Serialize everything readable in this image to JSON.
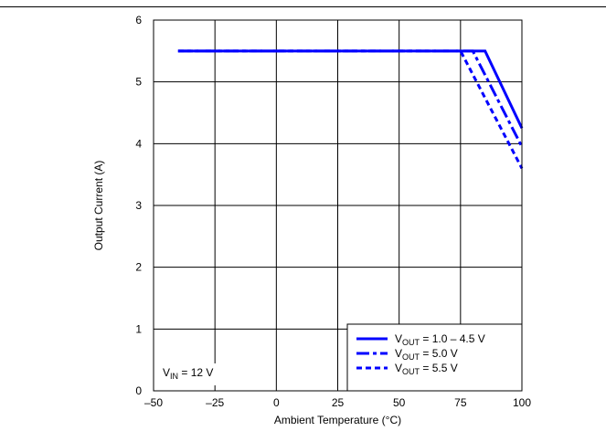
{
  "chart_data": {
    "type": "line",
    "title": "",
    "xlabel": "Ambient Temperature (°C)",
    "ylabel": "Output Current (A)",
    "xlim": [
      -50,
      100
    ],
    "ylim": [
      0,
      6
    ],
    "x_ticks": [
      "–50",
      "–25",
      "0",
      "25",
      "50",
      "75",
      "100"
    ],
    "y_ticks": [
      "0",
      "1",
      "2",
      "3",
      "4",
      "5",
      "6"
    ],
    "grid": true,
    "legend_position": "bottom-right",
    "annotation": {
      "main": "V",
      "sub": "IN",
      "rest": " = 12 V"
    },
    "series": [
      {
        "legend": {
          "main": "V",
          "sub": "OUT",
          "rest": " = 1.0 – 4.5 V"
        },
        "style": "solid",
        "color": "#0000ff",
        "x": [
          -40,
          85,
          100
        ],
        "y": [
          5.5,
          5.5,
          4.25
        ]
      },
      {
        "legend": {
          "main": "V",
          "sub": "OUT",
          "rest": " = 5.0 V"
        },
        "style": "dash-dot",
        "color": "#0000ff",
        "x": [
          -40,
          80,
          100
        ],
        "y": [
          5.5,
          5.5,
          3.95
        ]
      },
      {
        "legend": {
          "main": "V",
          "sub": "OUT",
          "rest": " = 5.5 V"
        },
        "style": "dashed",
        "color": "#0000ff",
        "x": [
          -40,
          75,
          100
        ],
        "y": [
          5.5,
          5.5,
          3.6
        ]
      }
    ]
  }
}
